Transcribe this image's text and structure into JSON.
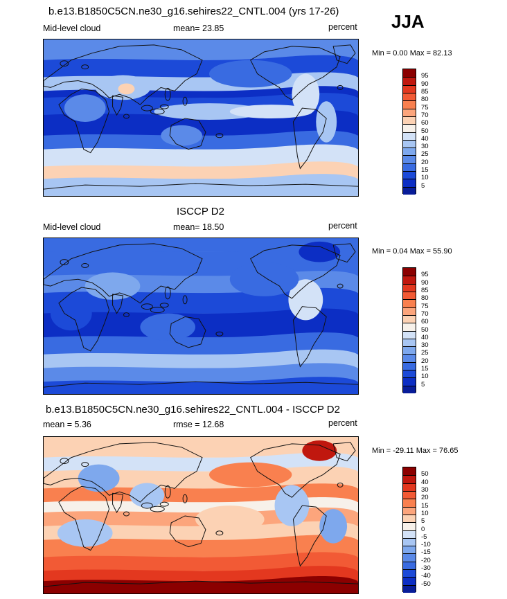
{
  "season": "JJA",
  "panels": [
    {
      "title": "b.e13.B1850C5CN.ne30_g16.sehires22_CNTL.004 (yrs 17-26)",
      "left_label": "Mid-level cloud",
      "center_label": "mean=  23.85",
      "right_label": "percent",
      "minmax": "Min =   0.00 Max =  82.13",
      "colorbar_labels": [
        "95",
        "90",
        "85",
        "80",
        "75",
        "70",
        "60",
        "50",
        "40",
        "30",
        "25",
        "20",
        "15",
        "10",
        "5"
      ],
      "colorbar_colors": [
        "#8b0000",
        "#c0170e",
        "#e3381f",
        "#f25a35",
        "#f9804f",
        "#fca57c",
        "#fcd2b4",
        "#f7f1ea",
        "#d3e2f7",
        "#a8c6f3",
        "#7ea8ed",
        "#5b8ae8",
        "#396be1",
        "#1c4ad8",
        "#0c2ec4",
        "#081d99"
      ]
    },
    {
      "title": "ISCCP D2",
      "left_label": "Mid-level cloud",
      "center_label": "mean=  18.50",
      "right_label": "percent",
      "minmax": "Min =   0.04 Max =  55.90",
      "colorbar_labels": [
        "95",
        "90",
        "85",
        "80",
        "75",
        "70",
        "60",
        "50",
        "40",
        "30",
        "25",
        "20",
        "15",
        "10",
        "5"
      ],
      "colorbar_colors": [
        "#8b0000",
        "#c0170e",
        "#e3381f",
        "#f25a35",
        "#f9804f",
        "#fca57c",
        "#fcd2b4",
        "#f7f1ea",
        "#d3e2f7",
        "#a8c6f3",
        "#7ea8ed",
        "#5b8ae8",
        "#396be1",
        "#1c4ad8",
        "#0c2ec4",
        "#081d99"
      ]
    },
    {
      "title": "b.e13.B1850C5CN.ne30_g16.sehires22_CNTL.004 - ISCCP D2",
      "left_label": "mean =   5.36",
      "center_label": "rmse =  12.68",
      "right_label": "percent",
      "minmax": "Min = -29.11 Max =  76.65",
      "colorbar_labels": [
        "50",
        "40",
        "30",
        "20",
        "15",
        "10",
        "5",
        "0",
        "-5",
        "-10",
        "-15",
        "-20",
        "-30",
        "-40",
        "-50"
      ],
      "colorbar_colors": [
        "#8b0000",
        "#c0170e",
        "#e3381f",
        "#f25a35",
        "#f9804f",
        "#fca57c",
        "#fcd2b4",
        "#f7f1ea",
        "#d3e2f7",
        "#a8c6f3",
        "#7ea8ed",
        "#5b8ae8",
        "#396be1",
        "#1c4ad8",
        "#0c2ec4",
        "#081d99"
      ]
    }
  ],
  "chart_data": [
    {
      "type": "heatmap",
      "title": "b.e13.B1850C5CN.ne30_g16.sehires22_CNTL.004 (yrs 17-26)",
      "variable": "Mid-level cloud",
      "units": "percent",
      "mean": 23.85,
      "min": 0.0,
      "max": 82.13,
      "levels": [
        5,
        10,
        15,
        20,
        25,
        30,
        40,
        50,
        60,
        70,
        75,
        80,
        85,
        90,
        95
      ]
    },
    {
      "type": "heatmap",
      "title": "ISCCP D2",
      "variable": "Mid-level cloud",
      "units": "percent",
      "mean": 18.5,
      "min": 0.04,
      "max": 55.9,
      "levels": [
        5,
        10,
        15,
        20,
        25,
        30,
        40,
        50,
        60,
        70,
        75,
        80,
        85,
        90,
        95
      ]
    },
    {
      "type": "heatmap",
      "title": "b.e13.B1850C5CN.ne30_g16.sehires22_CNTL.004 - ISCCP D2",
      "units": "percent",
      "mean": 5.36,
      "rmse": 12.68,
      "min": -29.11,
      "max": 76.65,
      "levels": [
        -50,
        -40,
        -30,
        -20,
        -15,
        -10,
        -5,
        0,
        5,
        10,
        15,
        20,
        30,
        40,
        50
      ]
    }
  ]
}
